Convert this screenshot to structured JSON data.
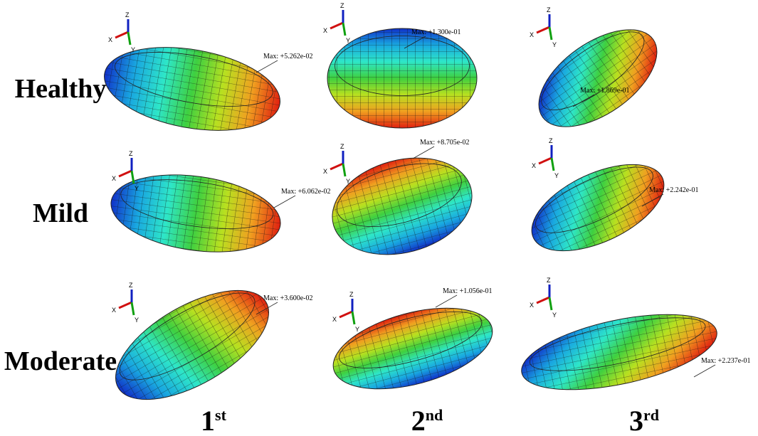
{
  "rows": [
    "Healthy",
    "Mild",
    "Moderate"
  ],
  "columns": [
    {
      "base": "1",
      "sup": "st"
    },
    {
      "base": "2",
      "sup": "nd"
    },
    {
      "base": "3",
      "sup": "rd"
    }
  ],
  "triad_labels": [
    "X",
    "Y",
    "Z"
  ],
  "max_labels": [
    [
      "Max: +5.262e-02",
      "Max: +1.300e-01",
      "Max: +1.869e-01"
    ],
    [
      "Max: +6.062e-02",
      "Max: +8.705e-02",
      "Max: +2.242e-01"
    ],
    [
      "Max: +3.600e-02",
      "Max: +1.056e-01",
      "Max: +2.237e-01"
    ]
  ]
}
